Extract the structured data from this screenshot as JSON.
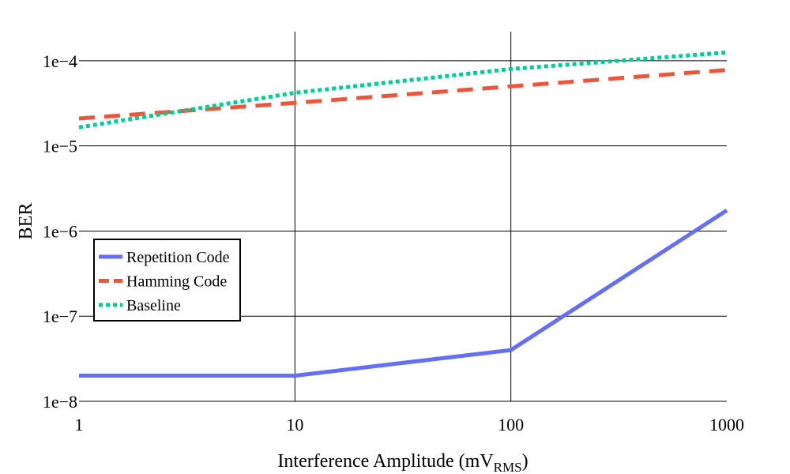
{
  "chart_data": {
    "type": "line",
    "x_scale": "log",
    "y_scale": "log",
    "xlabel": "Interference Amplitude (mV",
    "xlabel_subscript": "RMS",
    "xlabel_suffix": ")",
    "ylabel": "BER",
    "xlim": [
      1,
      1000
    ],
    "ylim": [
      1e-08,
      0.00022
    ],
    "x_ticks": [
      {
        "value": 1,
        "label": "1"
      },
      {
        "value": 10,
        "label": "10"
      },
      {
        "value": 100,
        "label": "100"
      },
      {
        "value": 1000,
        "label": "1000"
      }
    ],
    "y_ticks": [
      {
        "value": 1e-08,
        "label": "1e−8"
      },
      {
        "value": 1e-07,
        "label": "1e−7"
      },
      {
        "value": 1e-06,
        "label": "1e−6"
      },
      {
        "value": 1e-05,
        "label": "1e−5"
      },
      {
        "value": 0.0001,
        "label": "1e−4"
      }
    ],
    "grid": true,
    "legend_position": "left",
    "series": [
      {
        "name": "Repetition Code",
        "color": "#636efa",
        "dash": "solid",
        "x": [
          1,
          10,
          100,
          1000
        ],
        "y": [
          2e-08,
          2e-08,
          4e-08,
          1.75e-06
        ]
      },
      {
        "name": "Hamming Code",
        "color": "#ef553b",
        "dash": "dash",
        "x": [
          1,
          10,
          100,
          1000
        ],
        "y": [
          2.1e-05,
          3.2e-05,
          5e-05,
          7.8e-05
        ]
      },
      {
        "name": "Baseline",
        "color": "#00cc96",
        "dash": "dot",
        "x": [
          1,
          10,
          100,
          1000
        ],
        "y": [
          1.65e-05,
          4.2e-05,
          8e-05,
          0.000125
        ]
      }
    ]
  }
}
